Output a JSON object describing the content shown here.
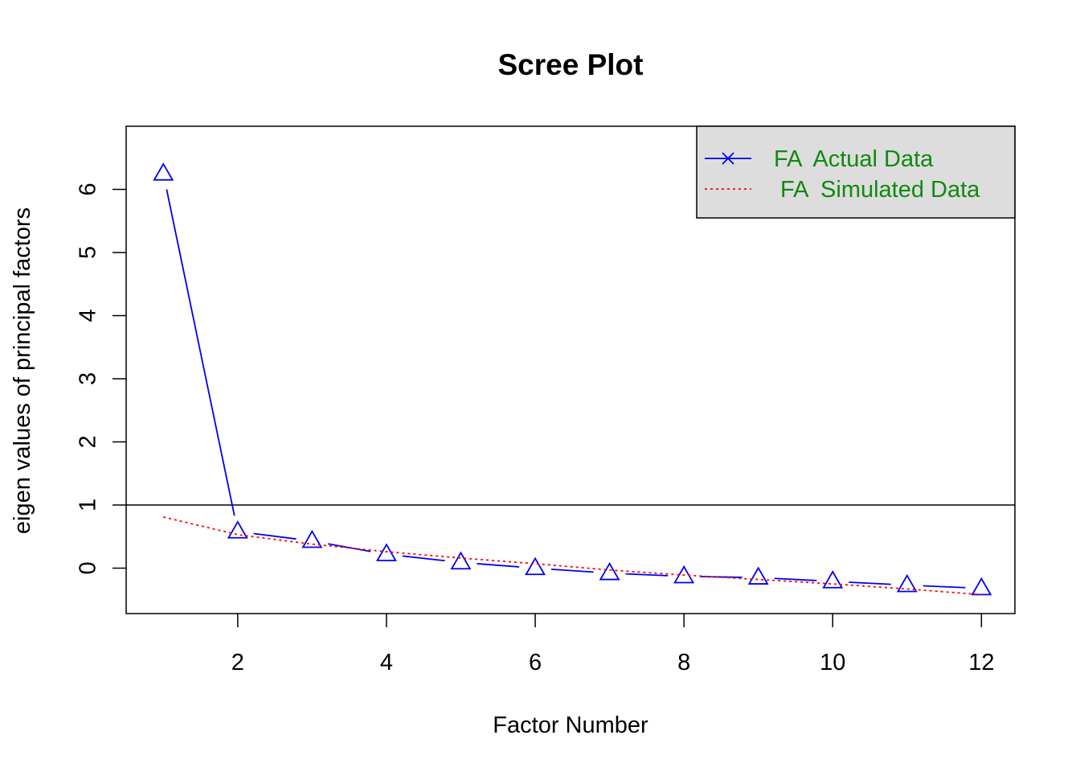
{
  "chart_data": {
    "type": "line",
    "title": "Scree Plot",
    "xlabel": "Factor Number",
    "ylabel": "eigen values of principal factors",
    "xlim": [
      0.5,
      12.45
    ],
    "ylim": [
      -0.72,
      7.0
    ],
    "xticks": [
      2,
      4,
      6,
      8,
      10,
      12
    ],
    "yticks": [
      0,
      1,
      2,
      3,
      4,
      5,
      6
    ],
    "reference_line": 1,
    "legend_position": "top-right",
    "legend_background": "#dddddd",
    "series": [
      {
        "name": "FA  Actual Data",
        "color": "#0000ee",
        "line": "solid",
        "marker": "triangle",
        "legend_marker": "x",
        "x": [
          1,
          2,
          3,
          4,
          5,
          6,
          7,
          8,
          9,
          10,
          11,
          12
        ],
        "values": [
          6.25,
          0.58,
          0.43,
          0.22,
          0.09,
          0.0,
          -0.08,
          -0.13,
          -0.15,
          -0.21,
          -0.27,
          -0.32
        ]
      },
      {
        "name": " FA  Simulated Data",
        "color": "#ff0000",
        "line": "dotted",
        "marker": "none",
        "x": [
          1,
          2,
          3,
          4,
          5,
          6,
          7,
          8,
          9,
          10,
          11,
          12
        ],
        "values": [
          0.81,
          0.53,
          0.38,
          0.26,
          0.16,
          0.07,
          -0.03,
          -0.11,
          -0.18,
          -0.25,
          -0.33,
          -0.42
        ]
      }
    ]
  }
}
